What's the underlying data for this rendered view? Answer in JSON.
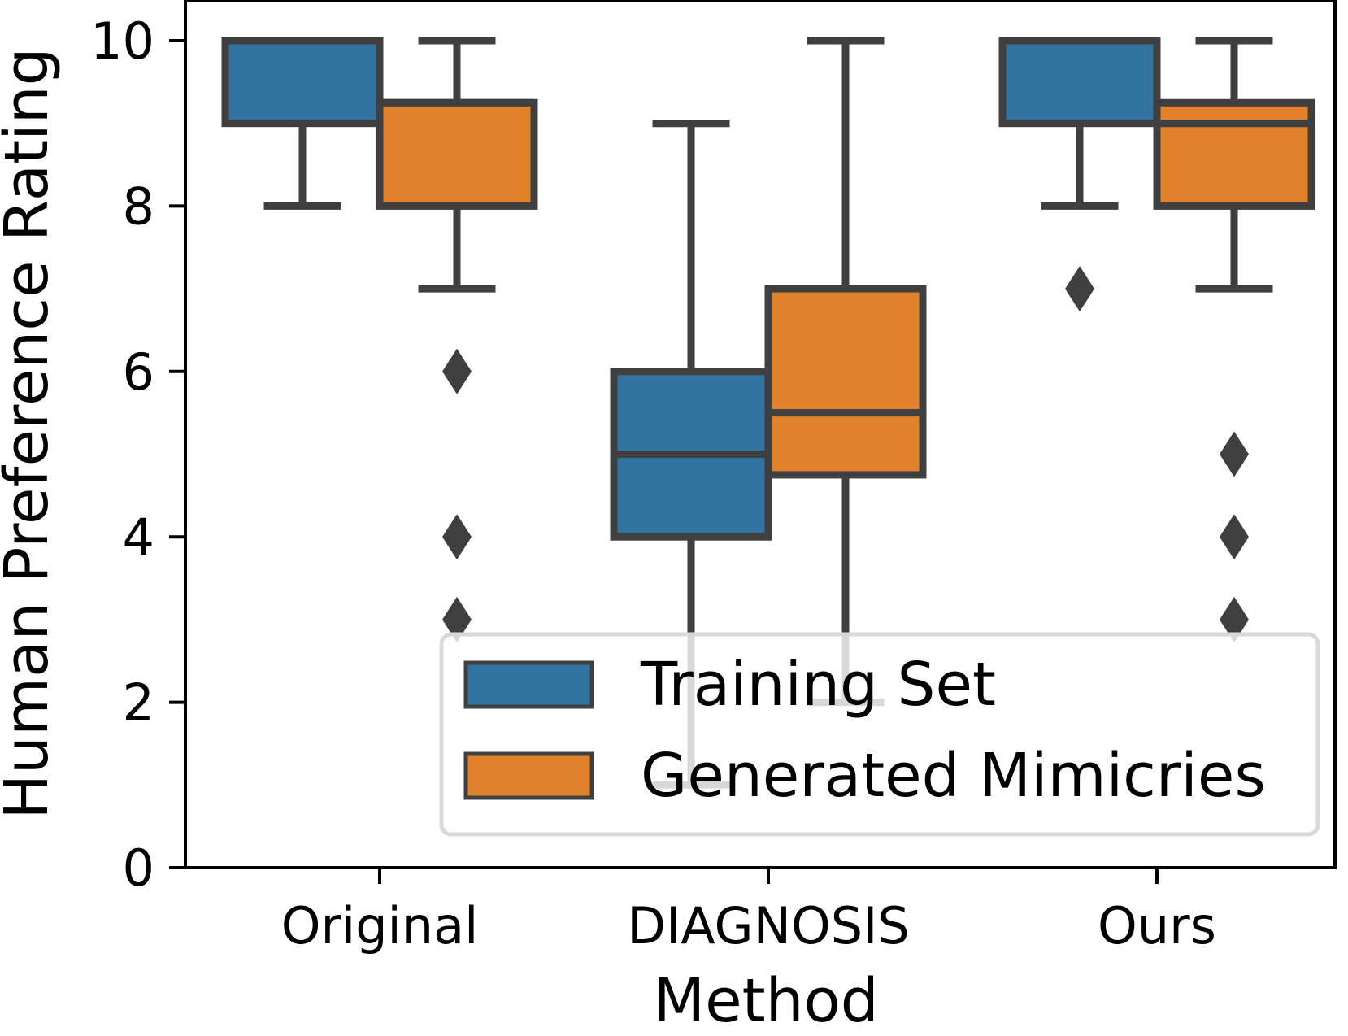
{
  "chart_data": {
    "type": "box",
    "title": "",
    "xlabel": "Method",
    "ylabel": "Human Preference Rating",
    "ylim": [
      0,
      10.5
    ],
    "yticks": [
      0,
      2,
      4,
      6,
      8,
      10
    ],
    "categories": [
      "Original",
      "DIAGNOSIS",
      "Ours"
    ],
    "legend": {
      "position": "lower-right",
      "entries": [
        "Training Set",
        "Generated Mimicries"
      ]
    },
    "colors": {
      "training": "#3274a1",
      "generated": "#e1812c",
      "edge": "#3f3f3f"
    },
    "series": [
      {
        "name": "Training Set",
        "color": "#3274a1",
        "boxes": [
          {
            "category": "Original",
            "whislo": 8,
            "q1": 9,
            "med": 10,
            "q3": 10,
            "whishi": 10,
            "fliers": []
          },
          {
            "category": "DIAGNOSIS",
            "whislo": 1,
            "q1": 4,
            "med": 5,
            "q3": 6,
            "whishi": 9,
            "fliers": []
          },
          {
            "category": "Ours",
            "whislo": 8,
            "q1": 9,
            "med": 10,
            "q3": 10,
            "whishi": 10,
            "fliers": [
              7
            ]
          }
        ]
      },
      {
        "name": "Generated Mimicries",
        "color": "#e1812c",
        "boxes": [
          {
            "category": "Original",
            "whislo": 7,
            "q1": 8,
            "med": 9.25,
            "q3": 9.25,
            "whishi": 10,
            "fliers": [
              6,
              4,
              3
            ]
          },
          {
            "category": "DIAGNOSIS",
            "whislo": 2,
            "q1": 4.75,
            "med": 5.5,
            "q3": 7,
            "whishi": 10,
            "fliers": []
          },
          {
            "category": "Ours",
            "whislo": 7,
            "q1": 8,
            "med": 9,
            "q3": 9.25,
            "whishi": 10,
            "fliers": [
              5,
              4,
              3
            ]
          }
        ]
      }
    ]
  }
}
